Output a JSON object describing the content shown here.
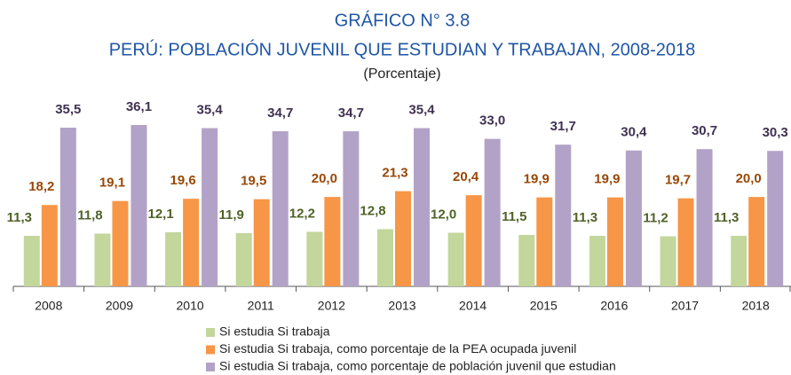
{
  "chart_data": {
    "type": "bar",
    "title": "GRÁFICO N° 3.8",
    "subtitle": "PERÚ: POBLACIÓN JUVENIL QUE ESTUDIAN Y TRABAJAN, 2008-2018",
    "unit_label": "(Porcentaje)",
    "categories": [
      "2008",
      "2009",
      "2010",
      "2011",
      "2012",
      "2013",
      "2014",
      "2015",
      "2016",
      "2017",
      "2018"
    ],
    "series": [
      {
        "name": "Si estudia Si trabaja",
        "color": "#c3d69b",
        "label_color": "#4f6228",
        "values": [
          11.3,
          11.8,
          12.1,
          11.9,
          12.2,
          12.8,
          12.0,
          11.5,
          11.3,
          11.2,
          11.3
        ],
        "value_labels": [
          "11,3",
          "11,8",
          "12,1",
          "11,9",
          "12,2",
          "12,8",
          "12,0",
          "11,5",
          "11,3",
          "11,2",
          "11,3"
        ]
      },
      {
        "name": "Si estudia Si trabaja, como porcentaje de la PEA ocupada juvenil",
        "color": "#f79646",
        "label_color": "#984807",
        "values": [
          18.2,
          19.1,
          19.6,
          19.5,
          20.0,
          21.3,
          20.4,
          19.9,
          19.9,
          19.7,
          20.0
        ],
        "value_labels": [
          "18,2",
          "19,1",
          "19,6",
          "19,5",
          "20,0",
          "21,3",
          "20,4",
          "19,9",
          "19,9",
          "19,7",
          "20,0"
        ]
      },
      {
        "name": "Si estudia Si trabaja, como porcentaje de población juvenil que estudian",
        "color": "#b3a2c7",
        "label_color": "#403152",
        "values": [
          35.5,
          36.1,
          35.4,
          34.7,
          34.7,
          35.4,
          33.0,
          31.7,
          30.4,
          30.7,
          30.3
        ],
        "value_labels": [
          "35,5",
          "36,1",
          "35,4",
          "34,7",
          "34,7",
          "35,4",
          "33,0",
          "31,7",
          "30,4",
          "30,7",
          "30,3"
        ]
      }
    ]
  }
}
